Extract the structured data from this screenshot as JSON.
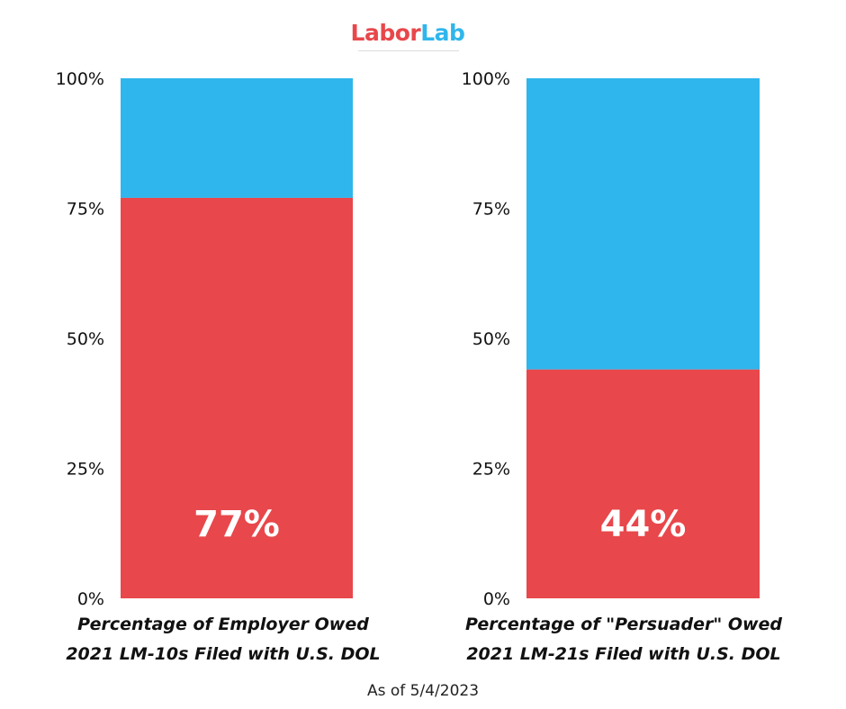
{
  "logo": {
    "part1": "Labor",
    "part2": "Lab"
  },
  "footnote": "As of 5/4/2023",
  "colors": {
    "filed": "#e8474b",
    "remainder": "#2fb6ec",
    "logo_red": "#e8474b",
    "logo_blue": "#2fb6ec"
  },
  "chart_data": [
    {
      "type": "bar",
      "stacked": true,
      "categories": [
        "Percentage of Employer Owed 2021  LM-10s Filed with U.S. DOL"
      ],
      "xlabel_lines": [
        "Percentage of Employer Owed",
        "2021  LM-10s Filed with U.S. DOL"
      ],
      "values": [
        77
      ],
      "value_label": "77%",
      "ylim": [
        0,
        100
      ],
      "yticks": [
        0,
        25,
        50,
        75,
        100
      ],
      "ytick_labels": [
        "0%",
        "25%",
        "50%",
        "75%",
        "100%"
      ],
      "grid": false,
      "legend": "none"
    },
    {
      "type": "bar",
      "stacked": true,
      "categories": [
        "Percentage of \"Persuader\" Owed 2021 LM-21s Filed with U.S. DOL"
      ],
      "xlabel_lines": [
        "Percentage of \"Persuader\" Owed",
        "2021 LM-21s Filed with U.S. DOL"
      ],
      "values": [
        44
      ],
      "value_label": "44%",
      "ylim": [
        0,
        100
      ],
      "yticks": [
        0,
        25,
        50,
        75,
        100
      ],
      "ytick_labels": [
        "0%",
        "25%",
        "50%",
        "75%",
        "100%"
      ],
      "grid": false,
      "legend": "none"
    }
  ]
}
